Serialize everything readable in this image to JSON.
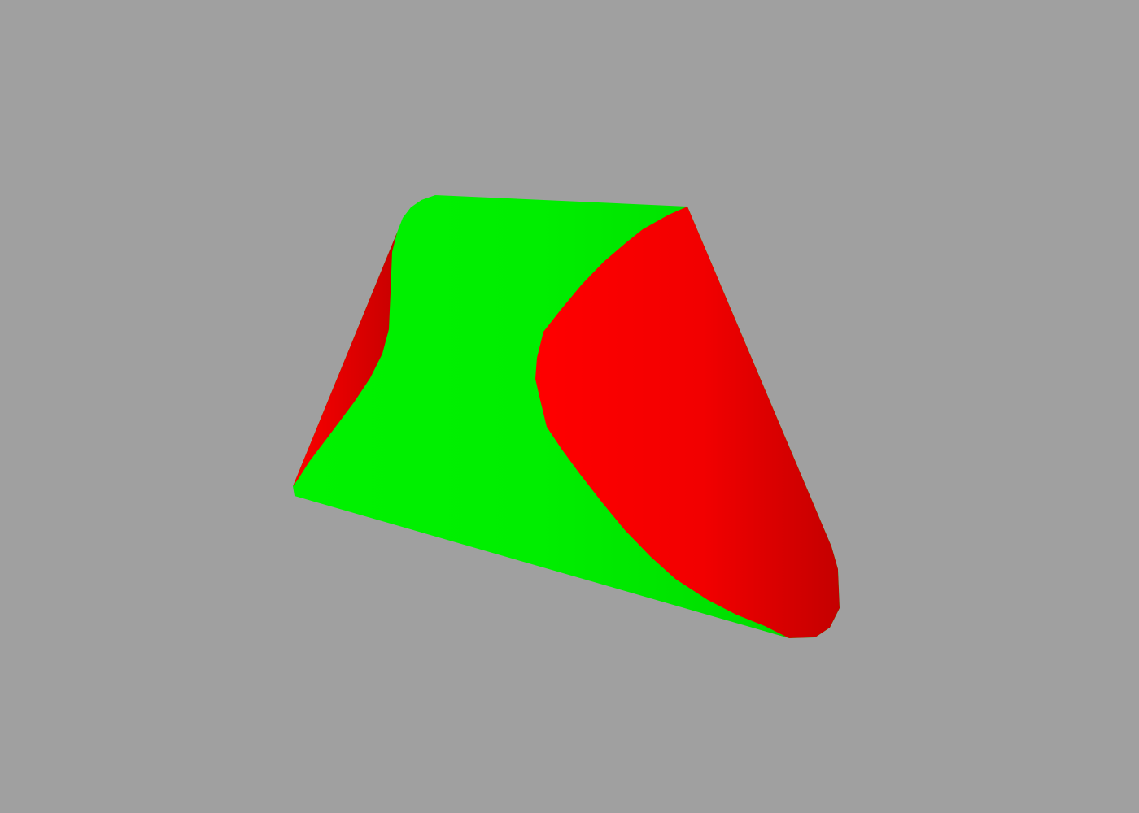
{
  "scene": {
    "background_color": "#a0a0a0",
    "object": "truncated-cone",
    "colors": {
      "green": "#00ee00",
      "green_light": "#00ff00",
      "green_dark": "#00d400",
      "red": "#ff0000",
      "red_dark": "#cc0000"
    }
  }
}
